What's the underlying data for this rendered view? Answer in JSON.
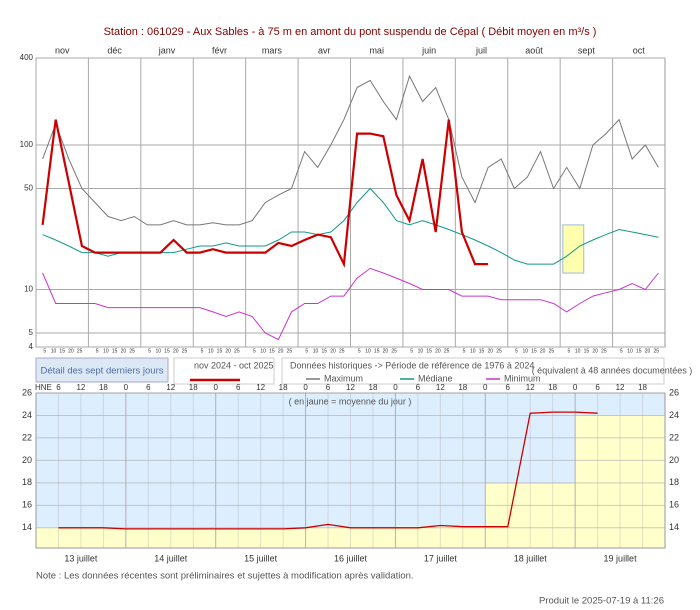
{
  "title": "Station : 061029      -  Aux Sables - à 75 m en amont du pont suspendu de Cépal   ( Débit moyen en m³/s )",
  "chart_data": [
    {
      "type": "line",
      "log_scale": true,
      "categories": [
        "nov",
        null,
        null,
        null,
        "déc",
        null,
        null,
        null,
        "janv",
        null,
        null,
        null,
        "févr",
        null,
        null,
        null,
        "mars",
        null,
        null,
        null,
        "avr",
        null,
        null,
        null,
        "mai",
        null,
        null,
        null,
        "juin",
        null,
        null,
        null,
        "juil",
        null,
        null,
        null,
        "août",
        null,
        null,
        null,
        "sept",
        null,
        null,
        null,
        "oct",
        null,
        null,
        null
      ],
      "day_ticks": [
        5,
        10,
        15,
        20,
        25
      ],
      "ylim": [
        4,
        400
      ],
      "yticks": [
        4,
        5,
        10,
        50,
        100,
        400
      ],
      "grid": true,
      "series": [
        {
          "name": "nov 2024 - oct 2025",
          "color": "#cc0000",
          "values": [
            28,
            150,
            55,
            20,
            18,
            18,
            18,
            18,
            18,
            18,
            22,
            18,
            18,
            19,
            18,
            18,
            18,
            18,
            21,
            20,
            22,
            24,
            23,
            15,
            120,
            120,
            115,
            45,
            30,
            80,
            25,
            150,
            25,
            15,
            15,
            null,
            null,
            null,
            null,
            null,
            null,
            null,
            null,
            null,
            null,
            null,
            null,
            null
          ]
        },
        {
          "name": "Maximum",
          "color": "#777777",
          "values": [
            80,
            140,
            80,
            50,
            40,
            32,
            30,
            32,
            28,
            28,
            30,
            28,
            28,
            29,
            28,
            28,
            30,
            40,
            45,
            50,
            90,
            70,
            100,
            150,
            250,
            280,
            200,
            150,
            300,
            200,
            250,
            150,
            60,
            40,
            70,
            80,
            50,
            60,
            90,
            50,
            70,
            50,
            100,
            120,
            150,
            80,
            100,
            70
          ]
        },
        {
          "name": "Médiane",
          "color": "#119988",
          "values": [
            24,
            22,
            20,
            18,
            18,
            17,
            18,
            18,
            18,
            18,
            18,
            19,
            20,
            20,
            21,
            20,
            20,
            20,
            22,
            25,
            25,
            24,
            25,
            30,
            40,
            50,
            40,
            30,
            28,
            30,
            28,
            26,
            24,
            22,
            20,
            18,
            16,
            15,
            15,
            15,
            17,
            20,
            22,
            24,
            26,
            25,
            24,
            23
          ]
        },
        {
          "name": "Minimum",
          "color": "#cc33cc",
          "values": [
            13,
            8,
            8,
            8,
            8,
            7.5,
            7.5,
            7.5,
            7.5,
            7.5,
            7.5,
            7.5,
            7.5,
            7,
            6.5,
            7,
            6.5,
            5,
            4.5,
            7,
            8,
            8,
            9,
            9,
            12,
            14,
            13,
            12,
            11,
            10,
            10,
            10,
            9,
            9,
            9,
            8.5,
            8.5,
            8.5,
            8.5,
            8,
            7,
            8,
            9,
            9.5,
            10,
            11,
            10,
            13
          ]
        }
      ],
      "legend": {
        "detail": "Détail des sept derniers jours",
        "historic": "Données historiques -> Période de référence  de 1976 à 2024",
        "years": "( équivalent à 48 années documentées )"
      }
    },
    {
      "type": "line",
      "hour_unit": "HNE",
      "subtitle": "( en jaune = moyenne du jour )",
      "categories": [
        6,
        12,
        18,
        0,
        6,
        12,
        18,
        0,
        6,
        12,
        18,
        0,
        6,
        12,
        18,
        0,
        6,
        12,
        18,
        0,
        6,
        12,
        18,
        0,
        6,
        12,
        18
      ],
      "ylim": [
        12.2,
        26
      ],
      "yticks": [
        14,
        16,
        18,
        20,
        22,
        24,
        26
      ],
      "grid": true,
      "series": [
        {
          "color": "#cc0000",
          "values": [
            14.0,
            14.0,
            14.0,
            13.9,
            13.9,
            13.9,
            13.9,
            13.9,
            13.9,
            13.9,
            13.9,
            14.0,
            14.3,
            14.0,
            14.0,
            14.0,
            14.0,
            14.2,
            14.1,
            14.1,
            14.1,
            24.2,
            24.3,
            24.3,
            24.2,
            null,
            null
          ]
        }
      ],
      "days": [
        "13 juillet",
        "14 juillet",
        "15 juillet",
        "16 juillet",
        "17 juillet",
        "18 juillet",
        "19 juillet"
      ],
      "daily_means": [
        14.0,
        13.9,
        13.9,
        14.0,
        14.1,
        17.9,
        24.0
      ],
      "mean_color": "#ffffcc",
      "above_color": "#ddeeff"
    }
  ],
  "note": "Note : Les données récentes sont préliminaires et sujettes à modification après validation.",
  "produced": "Produit le 2025-07-19 à 11:26"
}
